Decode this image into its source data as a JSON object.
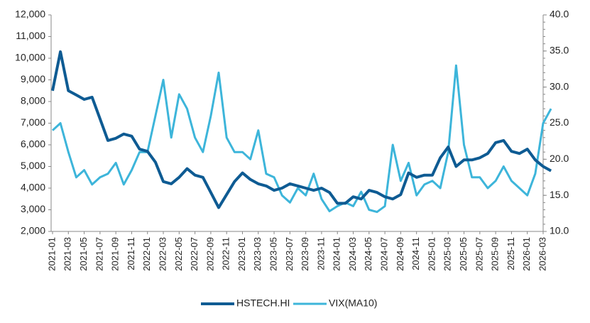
{
  "chart_data": {
    "type": "line",
    "categories": [
      "2021-01",
      null,
      "2021-03",
      null,
      "2021-05",
      null,
      "2021-07",
      null,
      "2021-09",
      null,
      "2021-11",
      null,
      "2022-01",
      null,
      "2022-03",
      null,
      "2022-05",
      null,
      "2022-07",
      null,
      "2022-09",
      null,
      "2022-11",
      null,
      "2023-01",
      null,
      "2023-03",
      null,
      "2023-05",
      null,
      "2023-07",
      null,
      "2023-09",
      null,
      "2023-11",
      null,
      "2024-01",
      null,
      "2024-03",
      null,
      "2024-05",
      null,
      "2024-07",
      null,
      "2024-09",
      null,
      "2024-11",
      null,
      "2025-01",
      null,
      "2025-03",
      null,
      "2025-05",
      null,
      "2025-07",
      null,
      "2025-09",
      null,
      "2025-11",
      null,
      "2026-01",
      null,
      "2026-03",
      null
    ],
    "series": [
      {
        "name": "HSTECH.HI",
        "color": "#0e5b93",
        "axis": "y",
        "values": [
          8500,
          10300,
          8500,
          8300,
          8100,
          8200,
          7200,
          6200,
          6300,
          6500,
          6400,
          5800,
          5700,
          5200,
          4300,
          4200,
          4500,
          4900,
          4600,
          4500,
          3800,
          3100,
          3700,
          4300,
          4700,
          4400,
          4200,
          4100,
          3900,
          4000,
          4200,
          4100,
          4000,
          3900,
          4000,
          3800,
          3300,
          3300,
          3600,
          3500,
          3900,
          3800,
          3600,
          3500,
          3700,
          4700,
          4500,
          4600,
          4600,
          5400,
          5900,
          5000,
          5300,
          5300,
          5400,
          5600,
          6100,
          6200,
          5700,
          5600,
          5800,
          5300,
          5000,
          4800
        ]
      },
      {
        "name": "VIX(MA10)",
        "color": "#3db5da",
        "axis": "y2",
        "values": [
          24,
          25,
          21,
          17.5,
          18.5,
          16.5,
          17.5,
          18,
          19.5,
          16.5,
          18.5,
          21,
          21,
          26,
          31,
          23,
          29,
          27,
          23,
          21,
          26,
          32,
          23,
          21,
          21,
          20,
          24,
          18,
          17.5,
          15,
          14,
          16,
          15,
          18,
          14.5,
          12.8,
          13.5,
          14,
          13.5,
          15.5,
          13,
          12.7,
          13.5,
          22,
          17,
          19.5,
          15,
          16.5,
          17,
          16,
          21,
          33,
          22,
          17.5,
          17.5,
          16,
          17,
          19,
          17,
          16,
          15,
          18,
          25,
          27
        ]
      }
    ],
    "ylim": [
      2000,
      12000
    ],
    "yticks": [
      {
        "value": 2000,
        "label": "2,000"
      },
      {
        "value": 3000,
        "label": "3,000"
      },
      {
        "value": 4000,
        "label": "4,000"
      },
      {
        "value": 5000,
        "label": "5,000"
      },
      {
        "value": 6000,
        "label": "6,000"
      },
      {
        "value": 7000,
        "label": "7,000"
      },
      {
        "value": 8000,
        "label": "8,000"
      },
      {
        "value": 9000,
        "label": "9,000"
      },
      {
        "value": 10000,
        "label": "10,000"
      },
      {
        "value": 11000,
        "label": "11,000"
      },
      {
        "value": 12000,
        "label": "12,000"
      }
    ],
    "y2lim": [
      10,
      40
    ],
    "y2ticks": [
      {
        "value": 10,
        "label": "10.0"
      },
      {
        "value": 15,
        "label": "15.0"
      },
      {
        "value": 20,
        "label": "20.0"
      },
      {
        "value": 25,
        "label": "25.0"
      },
      {
        "value": 30,
        "label": "30.0"
      },
      {
        "value": 35,
        "label": "35.0"
      },
      {
        "value": 40,
        "label": "40.0"
      }
    ],
    "grid": false,
    "legend": "bottom"
  }
}
